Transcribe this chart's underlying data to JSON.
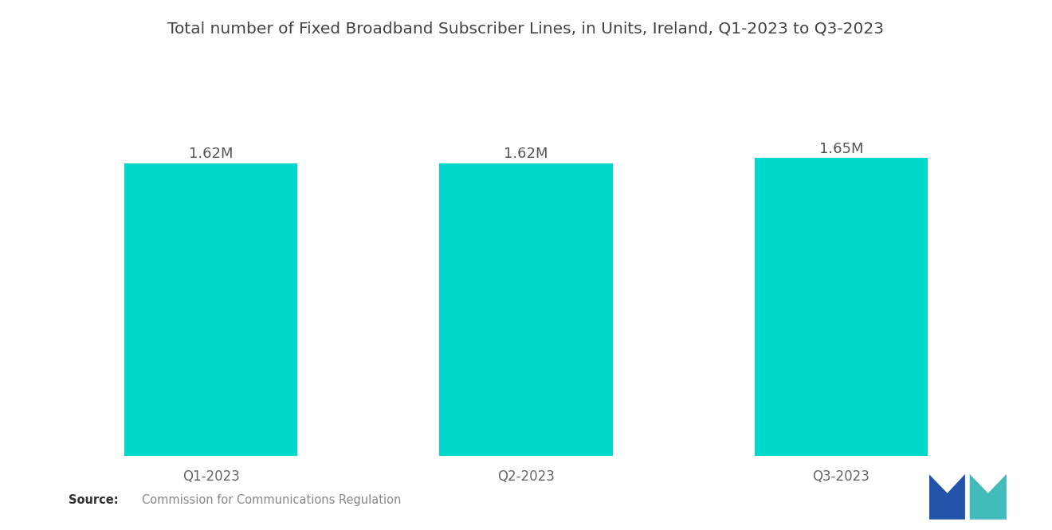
{
  "title": "Total number of Fixed Broadband Subscriber Lines, in Units, Ireland, Q1-2023 to Q3-2023",
  "categories": [
    "Q1-2023",
    "Q2-2023",
    "Q3-2023"
  ],
  "values": [
    1.62,
    1.62,
    1.65
  ],
  "labels": [
    "1.62M",
    "1.62M",
    "1.65M"
  ],
  "bar_color": "#00D8CC",
  "background_color": "#ffffff",
  "title_fontsize": 14.5,
  "label_fontsize": 13,
  "tick_fontsize": 12,
  "source_text": "Commission for Communications Regulation",
  "source_label": "Source:",
  "ylim_min": 0,
  "ylim_max": 1.85,
  "bar_width": 0.55
}
